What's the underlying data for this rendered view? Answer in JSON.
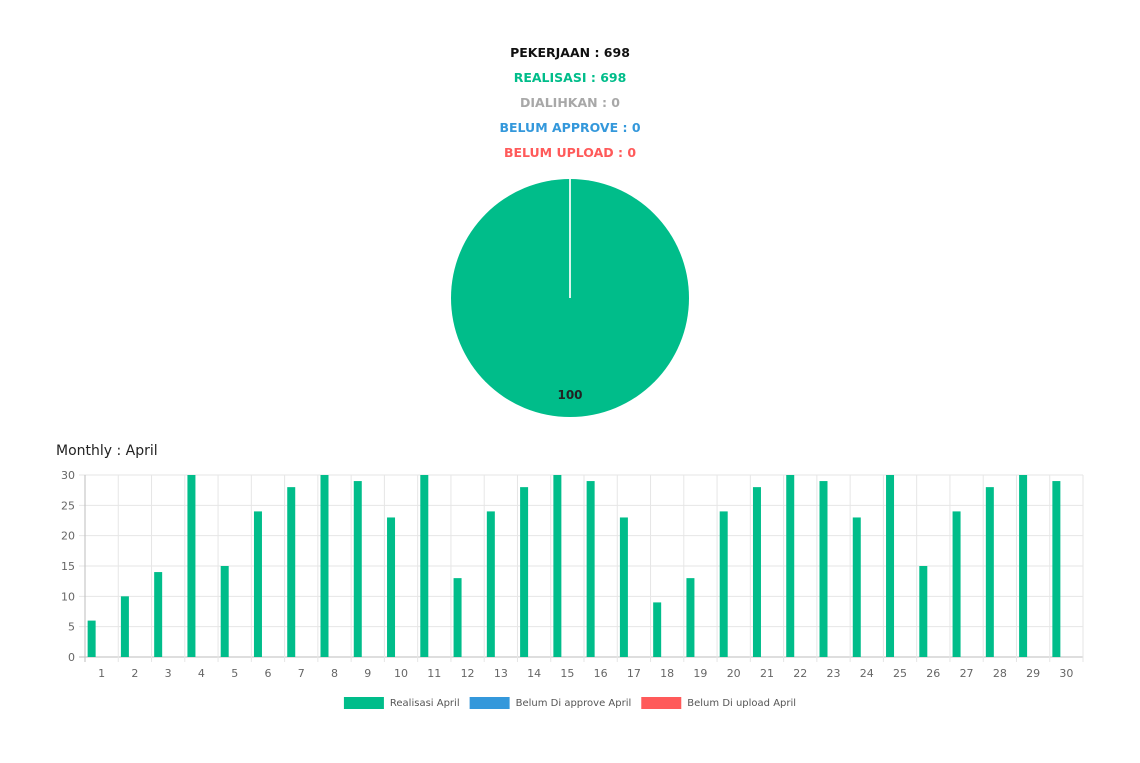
{
  "summary": [
    {
      "text": "PEKERJAAN : 698",
      "color": "#111111"
    },
    {
      "text": "REALISASI : 698",
      "color": "#00bd8a"
    },
    {
      "text": "DIALIHKAN : 0",
      "color": "#a8a8a8"
    },
    {
      "text": "BELUM APPROVE : 0",
      "color": "#3498db"
    },
    {
      "text": "BELUM UPLOAD : 0",
      "color": "#ff5a5a"
    }
  ],
  "pie": {
    "slices": [
      {
        "value": 100,
        "color": "#00bd8a"
      },
      {
        "value": 0,
        "color": "#3498db"
      },
      {
        "value": 0,
        "color": "#ff5a5a"
      }
    ],
    "label": "100"
  },
  "chart_data": {
    "type": "bar",
    "title": "Monthly : April",
    "categories": [
      "1",
      "2",
      "3",
      "4",
      "5",
      "6",
      "7",
      "8",
      "9",
      "10",
      "11",
      "12",
      "13",
      "14",
      "15",
      "16",
      "17",
      "18",
      "19",
      "20",
      "21",
      "22",
      "23",
      "24",
      "25",
      "26",
      "27",
      "28",
      "29",
      "30"
    ],
    "series": [
      {
        "name": "Realisasi April",
        "color": "#00bd8a",
        "values": [
          6,
          10,
          14,
          30,
          15,
          24,
          28,
          30,
          29,
          23,
          30,
          13,
          24,
          28,
          30,
          29,
          23,
          9,
          13,
          24,
          28,
          30,
          29,
          23,
          30,
          15,
          24,
          28,
          30,
          29
        ]
      },
      {
        "name": "Belum Di approve April",
        "color": "#3498db",
        "values": [
          0,
          0,
          0,
          0,
          0,
          0,
          0,
          0,
          0,
          0,
          0,
          0,
          0,
          0,
          0,
          0,
          0,
          0,
          0,
          0,
          0,
          0,
          0,
          0,
          0,
          0,
          0,
          0,
          0,
          0
        ]
      },
      {
        "name": "Belum Di upload April",
        "color": "#ff5a5a",
        "values": [
          0,
          0,
          0,
          0,
          0,
          0,
          0,
          0,
          0,
          0,
          0,
          0,
          0,
          0,
          0,
          0,
          0,
          0,
          0,
          0,
          0,
          0,
          0,
          0,
          0,
          0,
          0,
          0,
          0,
          0
        ]
      }
    ],
    "yticks": [
      "0",
      "5",
      "10",
      "15",
      "20",
      "25",
      "30"
    ],
    "ylim": [
      0,
      30
    ],
    "grid": true,
    "legend_position": "bottom"
  }
}
